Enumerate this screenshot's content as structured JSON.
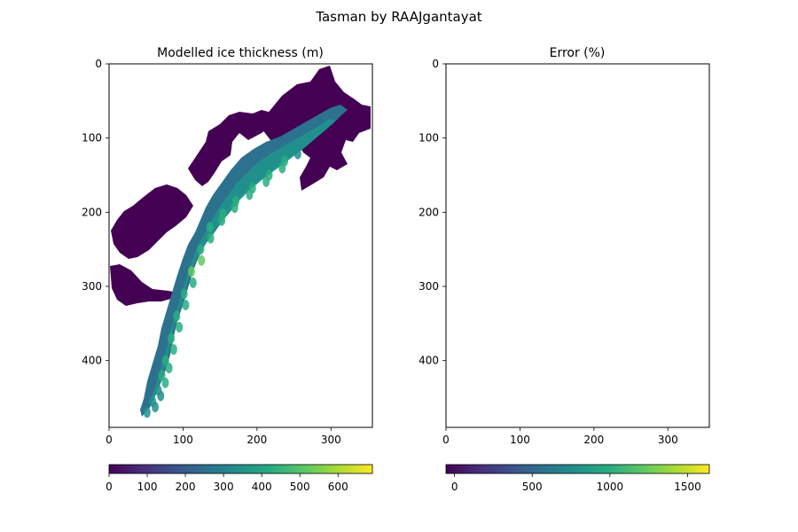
{
  "figure": {
    "suptitle": "Tasman by RAAJgantayat"
  },
  "chart_data": [
    {
      "type": "heatmap",
      "title": "Modelled ice thickness (m)",
      "xlim": [
        0,
        356
      ],
      "ylim": [
        490,
        0
      ],
      "xticks": [
        "0",
        "100",
        "200",
        "300"
      ],
      "yticks": [
        "0",
        "100",
        "200",
        "300",
        "400"
      ],
      "colormap": "viridis",
      "colorbar": {
        "range": [
          0,
          690
        ],
        "ticks": [
          "0",
          "100",
          "200",
          "300",
          "400",
          "500",
          "600"
        ],
        "tick_values": [
          0,
          100,
          200,
          300,
          400,
          500,
          600
        ]
      },
      "glacier": {
        "low_value_color": "#440154",
        "main_trunk_centerline": [
          [
            55,
            470
          ],
          [
            70,
            440
          ],
          [
            80,
            400
          ],
          [
            95,
            340
          ],
          [
            115,
            280
          ],
          [
            140,
            220
          ],
          [
            175,
            185
          ],
          [
            220,
            150
          ],
          [
            262,
            112
          ]
        ],
        "main_trunk_thickness_m": [
          320,
          380,
          420,
          450,
          480,
          460,
          430,
          410,
          380
        ]
      }
    },
    {
      "type": "heatmap",
      "title": "Error (%)",
      "xlim": [
        0,
        356
      ],
      "ylim": [
        490,
        0
      ],
      "xticks": [
        "0",
        "100",
        "200",
        "300"
      ],
      "yticks": [
        "0",
        "100",
        "200",
        "300",
        "400"
      ],
      "colormap": "viridis",
      "colorbar": {
        "range": [
          -55,
          1640
        ],
        "ticks": [
          "0",
          "500",
          "1000",
          "1500"
        ],
        "tick_values": [
          0,
          500,
          1000,
          1500
        ]
      },
      "glacier": null
    }
  ]
}
